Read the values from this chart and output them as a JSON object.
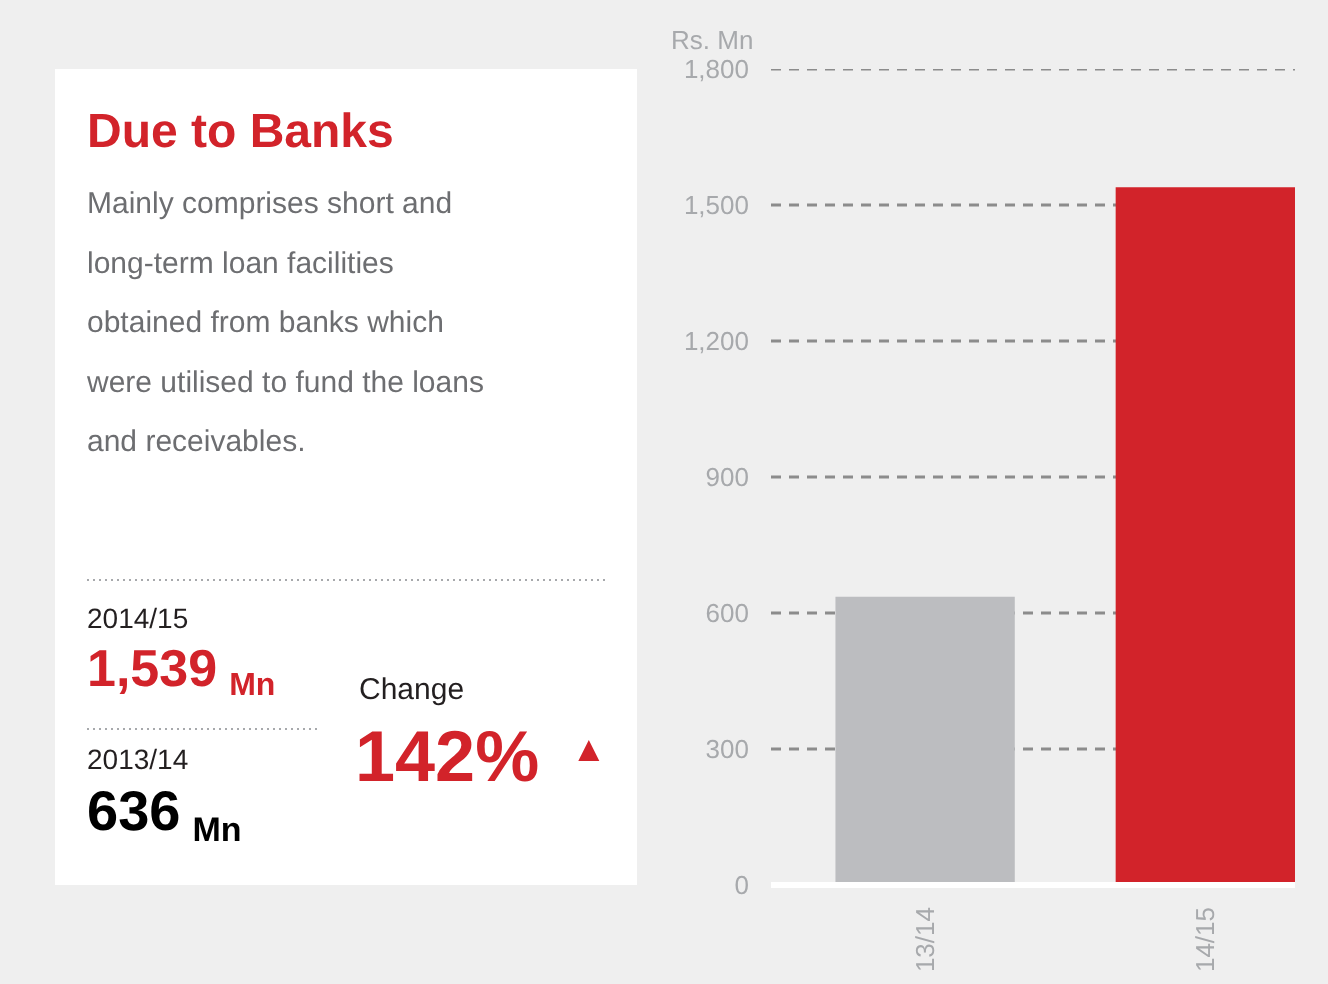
{
  "chart_data": [
    {
      "type": "other",
      "title": "Due to Banks",
      "subtitle": "Mainly comprises short and\nlong-term loan facilities\nobtained from banks which\nwere utilised to fund the loans\nand receivables.",
      "annotations": [
        "2014/15",
        "1,539 Mn",
        "2013/14",
        "636 Mn",
        "Change",
        "142% ▲"
      ]
    },
    {
      "type": "bar",
      "ylabel": "Rs. Mn",
      "categories": [
        "13/14",
        "14/15"
      ],
      "values": [
        636,
        1539
      ],
      "colors": [
        "#bcbdc0",
        "#d2232a"
      ],
      "ylim": [
        0,
        1800
      ],
      "yticks": [
        0,
        {
          "value": 300,
          "label": "300"
        },
        {
          "value": 600,
          "label": "600"
        },
        {
          "value": 900,
          "label": "900"
        },
        {
          "value": 1200,
          "label": "1,200"
        },
        {
          "value": 1500,
          "label": "1,500"
        },
        {
          "value": 1800,
          "label": "1,800"
        }
      ],
      "grid": "y"
    }
  ]
}
